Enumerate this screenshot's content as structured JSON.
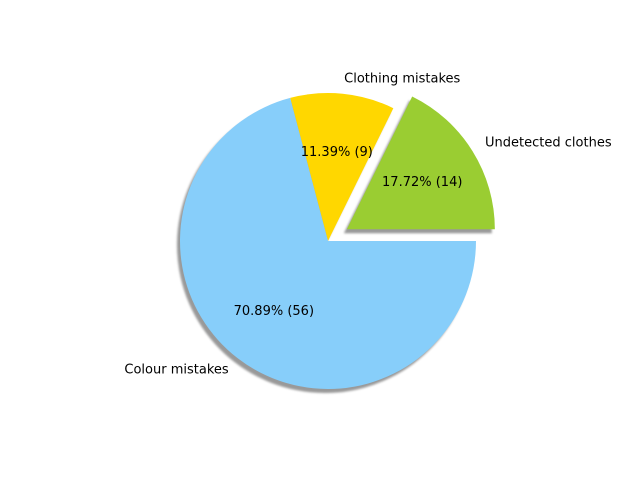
{
  "chart_data": {
    "type": "pie",
    "title": "",
    "start_angle_deg": 0,
    "direction": "counterclockwise",
    "shadow": true,
    "slices": [
      {
        "label": "Undetected clothes",
        "value": 14,
        "percent_label": "17.72%  (14)",
        "color": "#9ACD32",
        "exploded": true
      },
      {
        "label": "Clothing mistakes",
        "value": 9,
        "percent_label": "11.39%  (9)",
        "color": "#FFD700",
        "exploded": false
      },
      {
        "label": "Colour mistakes",
        "value": 56,
        "percent_label": "70.89%  (56)",
        "color": "#87CEFA",
        "exploded": false
      }
    ]
  }
}
